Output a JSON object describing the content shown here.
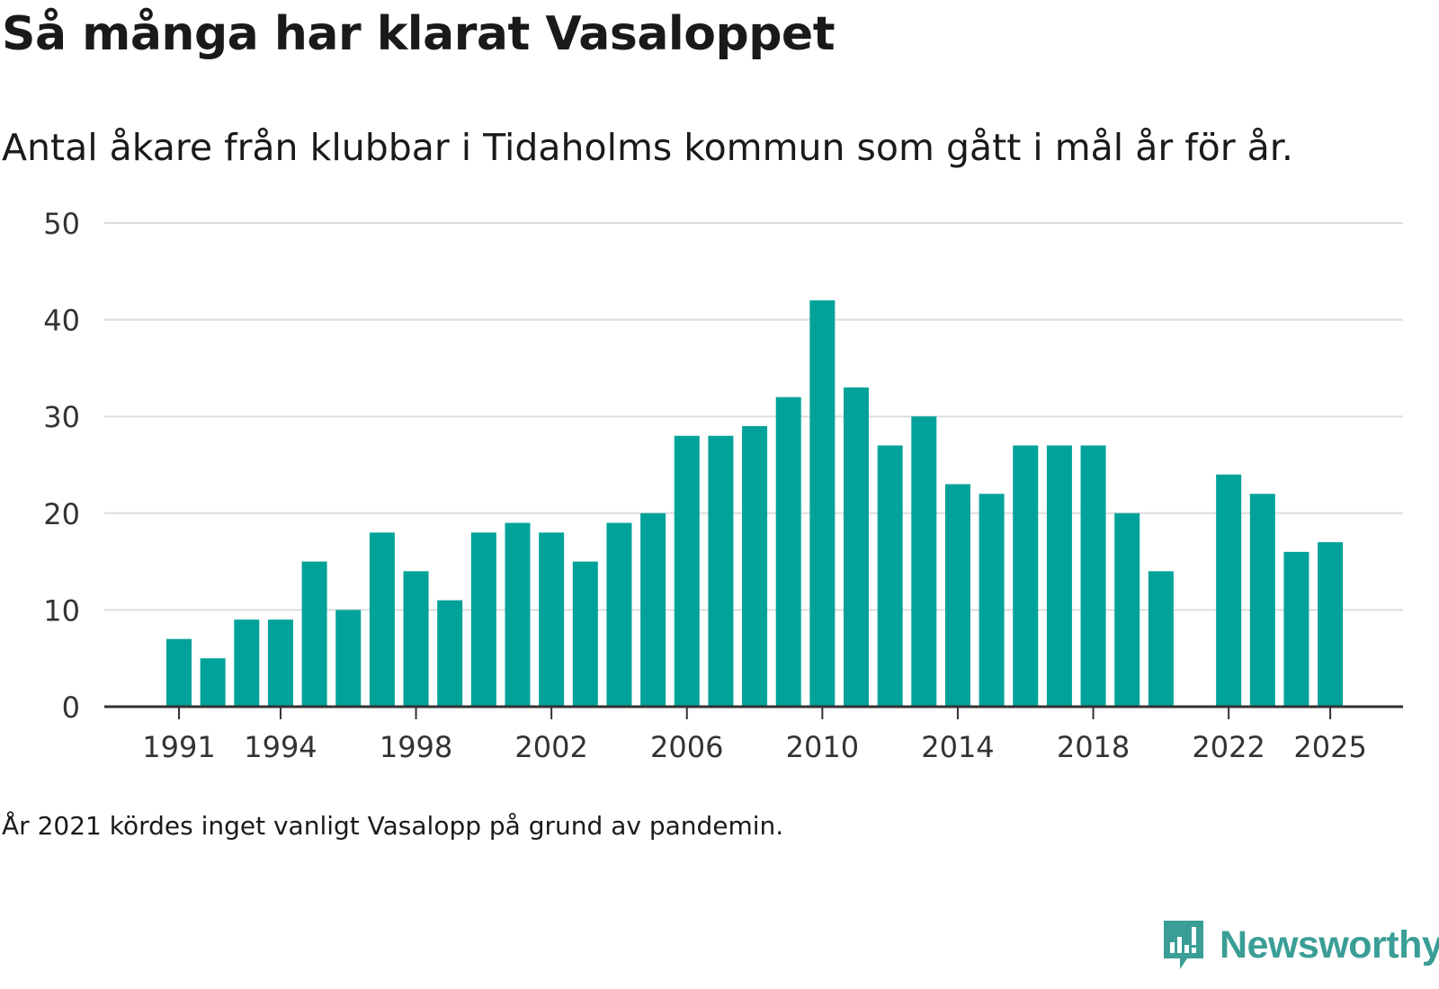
{
  "chart_data": {
    "type": "bar",
    "title": "Så många har klarat Vasaloppet",
    "subtitle": "Antal åkare från klubbar i Tidaholms kommun som gått i mål år för år.",
    "xlabel": "",
    "ylabel": "",
    "ylim": [
      0,
      50
    ],
    "yticks": [
      0,
      10,
      20,
      30,
      40,
      50
    ],
    "xtick_labels": [
      "1991",
      "1994",
      "1998",
      "2002",
      "2006",
      "2010",
      "2014",
      "2018",
      "2022",
      "2025"
    ],
    "grid": true,
    "color": "#00a29a",
    "categories": [
      1991,
      1992,
      1993,
      1994,
      1995,
      1996,
      1997,
      1998,
      1999,
      2000,
      2001,
      2002,
      2003,
      2004,
      2005,
      2006,
      2007,
      2008,
      2009,
      2010,
      2011,
      2012,
      2013,
      2014,
      2015,
      2016,
      2017,
      2018,
      2019,
      2020,
      2021,
      2022,
      2023,
      2024,
      2025
    ],
    "values": [
      7,
      5,
      9,
      9,
      15,
      10,
      18,
      14,
      11,
      18,
      19,
      18,
      15,
      19,
      20,
      28,
      28,
      29,
      32,
      42,
      33,
      27,
      30,
      23,
      22,
      27,
      27,
      27,
      20,
      14,
      null,
      24,
      22,
      16,
      17
    ]
  },
  "note": "År 2021 kördes inget vanligt Vasalopp på grund av pandemin.",
  "brand": {
    "name": "Newsworthy",
    "icon": "newsworthy-logo-icon",
    "color": "#3a9e96"
  }
}
